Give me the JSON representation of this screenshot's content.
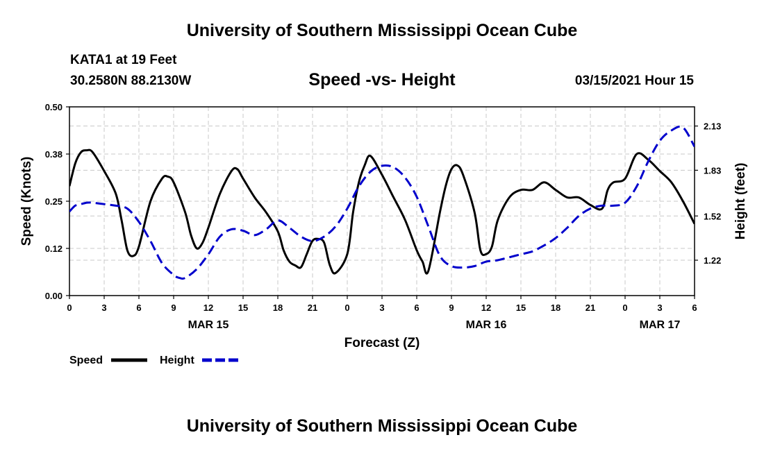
{
  "header": {
    "title": "University of Southern Mississippi Ocean Cube",
    "station": "KATA1 at 19 Feet",
    "coords": "30.2580N 88.2130W",
    "subtitle": "Speed -vs- Height",
    "datetime": "03/15/2021 Hour 15"
  },
  "footer": {
    "title": "University of Southern Mississippi Ocean Cube"
  },
  "colors": {
    "speed": "#000000",
    "height": "#0000cc",
    "grid": "#c8c8c8"
  },
  "chart_data": {
    "type": "line",
    "title": "Speed -vs- Height",
    "xlabel": "Forecast (Z)",
    "ylabel": "Speed (Knots)",
    "y2label": "Height (feet)",
    "x_range": [
      0,
      54
    ],
    "x_ticks": [
      0,
      3,
      6,
      9,
      12,
      15,
      18,
      21,
      24,
      27,
      30,
      33,
      36,
      39,
      42,
      45,
      48,
      51,
      54
    ],
    "x_tick_labels": [
      "0",
      "3",
      "6",
      "9",
      "12",
      "15",
      "18",
      "21",
      "0",
      "3",
      "6",
      "9",
      "12",
      "15",
      "18",
      "21",
      "0",
      "3",
      "6"
    ],
    "date_labels": [
      {
        "x": 12,
        "text": "MAR 15"
      },
      {
        "x": 36,
        "text": "MAR 16"
      },
      {
        "x": 51,
        "text": "MAR 17"
      }
    ],
    "ylim": [
      0,
      0.5
    ],
    "y_ticks": [
      0,
      0.125,
      0.25,
      0.375,
      0.5
    ],
    "y_tick_labels": [
      "0.00",
      "0.12",
      "0.25",
      "0.38",
      "0.50"
    ],
    "y2lim": [
      0.98,
      2.26
    ],
    "y2_ticks": [
      1.22,
      1.52,
      1.83,
      2.13
    ],
    "y2_tick_labels": [
      "1.22",
      "1.52",
      "1.83",
      "2.13"
    ],
    "grid": true,
    "legend_position": "bottom-left",
    "series": [
      {
        "name": "Speed",
        "axis": "left",
        "style": "solid",
        "x": [
          0,
          0.5,
          1,
          1.5,
          2,
          3,
          4,
          4.5,
          5,
          5.5,
          6,
          7,
          8,
          8.5,
          9,
          10,
          10.5,
          11,
          11.5,
          12,
          13,
          14,
          14.5,
          15,
          16,
          17,
          18,
          18.5,
          19,
          19.5,
          20,
          20.5,
          21,
          21.5,
          22,
          22.5,
          23,
          24,
          24.5,
          25,
          25.5,
          26,
          27,
          28,
          29,
          30,
          30.5,
          31,
          32,
          32.5,
          33,
          33.5,
          34,
          35,
          35.5,
          36,
          36.5,
          37,
          38,
          39,
          40,
          41,
          42,
          43,
          44,
          45,
          46,
          46.5,
          47,
          48,
          49,
          50,
          51,
          52,
          53,
          54
        ],
        "values": [
          0.29,
          0.35,
          0.38,
          0.385,
          0.38,
          0.33,
          0.27,
          0.2,
          0.12,
          0.105,
          0.13,
          0.25,
          0.31,
          0.315,
          0.3,
          0.22,
          0.16,
          0.125,
          0.14,
          0.18,
          0.27,
          0.33,
          0.335,
          0.31,
          0.26,
          0.22,
          0.17,
          0.12,
          0.09,
          0.08,
          0.075,
          0.11,
          0.145,
          0.15,
          0.14,
          0.08,
          0.06,
          0.11,
          0.22,
          0.3,
          0.345,
          0.37,
          0.32,
          0.26,
          0.2,
          0.12,
          0.09,
          0.065,
          0.22,
          0.29,
          0.335,
          0.345,
          0.32,
          0.22,
          0.12,
          0.11,
          0.13,
          0.2,
          0.26,
          0.28,
          0.28,
          0.3,
          0.28,
          0.26,
          0.26,
          0.24,
          0.23,
          0.28,
          0.3,
          0.31,
          0.375,
          0.36,
          0.33,
          0.3,
          0.25,
          0.19
        ]
      },
      {
        "name": "Height",
        "axis": "right",
        "style": "dashed",
        "x": [
          0,
          0.5,
          1,
          1.5,
          2,
          3,
          4,
          5,
          6,
          7,
          8,
          9,
          9.5,
          10,
          11,
          12,
          13,
          14,
          15,
          16,
          17,
          18,
          19,
          20,
          21,
          22,
          23,
          24,
          25,
          26,
          27,
          28,
          29,
          30,
          31,
          32,
          33,
          34,
          35,
          36,
          37,
          38,
          39,
          40,
          41,
          42,
          43,
          44,
          45,
          46,
          47,
          48,
          49,
          50,
          51,
          52,
          53,
          54
        ],
        "values": [
          1.55,
          1.59,
          1.6,
          1.61,
          1.61,
          1.6,
          1.59,
          1.57,
          1.48,
          1.35,
          1.2,
          1.12,
          1.1,
          1.1,
          1.16,
          1.26,
          1.38,
          1.43,
          1.42,
          1.39,
          1.43,
          1.49,
          1.44,
          1.38,
          1.35,
          1.38,
          1.45,
          1.57,
          1.72,
          1.82,
          1.86,
          1.85,
          1.78,
          1.65,
          1.45,
          1.25,
          1.18,
          1.17,
          1.18,
          1.21,
          1.22,
          1.24,
          1.26,
          1.28,
          1.32,
          1.37,
          1.44,
          1.52,
          1.57,
          1.59,
          1.59,
          1.61,
          1.72,
          1.89,
          2.03,
          2.1,
          2.12,
          1.99
        ]
      }
    ]
  }
}
